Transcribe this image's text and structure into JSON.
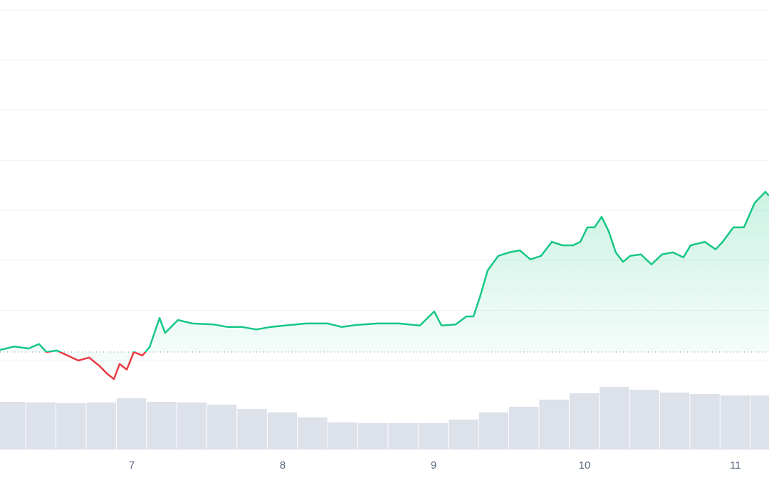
{
  "chart_data": {
    "type": "line",
    "x": [
      6.127,
      6.221,
      6.316,
      6.386,
      6.434,
      6.504,
      6.575,
      6.646,
      6.717,
      6.787,
      6.835,
      6.882,
      6.919,
      6.967,
      7.014,
      7.07,
      7.118,
      7.184,
      7.221,
      7.306,
      7.401,
      7.542,
      7.636,
      7.731,
      7.825,
      7.919,
      8.014,
      8.155,
      8.297,
      8.391,
      8.486,
      8.627,
      8.769,
      8.91,
      9.004,
      9.052,
      9.146,
      9.217,
      9.264,
      9.311,
      9.358,
      9.429,
      9.5,
      9.571,
      9.641,
      9.712,
      9.783,
      9.854,
      9.924,
      9.972,
      10.019,
      10.066,
      10.113,
      10.16,
      10.207,
      10.255,
      10.302,
      10.373,
      10.443,
      10.514,
      10.585,
      10.655,
      10.703,
      10.797,
      10.868,
      10.915,
      10.986,
      11.056,
      11.127,
      11.198,
      11.222
    ],
    "series": [
      {
        "name": "price",
        "values": [
          0.21,
          0.28,
          0.24,
          0.33,
          0.17,
          0.2,
          0.1,
          0,
          0.06,
          -0.11,
          -0.26,
          -0.37,
          -0.07,
          -0.18,
          0.17,
          0.1,
          0.27,
          0.85,
          0.55,
          0.81,
          0.74,
          0.72,
          0.67,
          0.67,
          0.62,
          0.67,
          0.7,
          0.74,
          0.74,
          0.67,
          0.71,
          0.74,
          0.74,
          0.7,
          0.98,
          0.7,
          0.72,
          0.88,
          0.88,
          1.31,
          1.8,
          2.09,
          2.16,
          2.2,
          2.02,
          2.09,
          2.37,
          2.3,
          2.3,
          2.37,
          2.66,
          2.66,
          2.87,
          2.58,
          2.16,
          1.97,
          2.09,
          2.12,
          1.92,
          2.12,
          2.16,
          2.06,
          2.3,
          2.37,
          2.22,
          2.37,
          2.66,
          2.66,
          3.15,
          3.37,
          3.29
        ]
      }
    ],
    "up_color": "#16c784",
    "down_color": "#ea3943",
    "baseline": 0.17,
    "xlim": [
      6.127,
      11.222
    ],
    "xticks": [
      7,
      8,
      9,
      10,
      11
    ],
    "ylim": [
      -1.775,
      7.2
    ],
    "yticks": [
      0,
      1,
      2,
      3,
      4,
      5,
      6,
      7
    ],
    "ytick_labels": false,
    "grid": true,
    "volume": {
      "x": [
        6.2,
        6.4,
        6.6,
        6.8,
        7.0,
        7.2,
        7.4,
        7.6,
        7.8,
        8.0,
        8.2,
        8.4,
        8.6,
        8.8,
        9.0,
        9.2,
        9.4,
        9.6,
        9.8,
        10.0,
        10.2,
        10.4,
        10.6,
        10.8,
        11.0,
        11.2
      ],
      "values": [
        67,
        66,
        65,
        66,
        72,
        67,
        66,
        63,
        57,
        52,
        45,
        38,
        37,
        37,
        37,
        42,
        52,
        60,
        70,
        79,
        88,
        84,
        80,
        78,
        76,
        76
      ],
      "ylim": [
        0,
        100
      ],
      "color": "#dde1ea"
    }
  }
}
